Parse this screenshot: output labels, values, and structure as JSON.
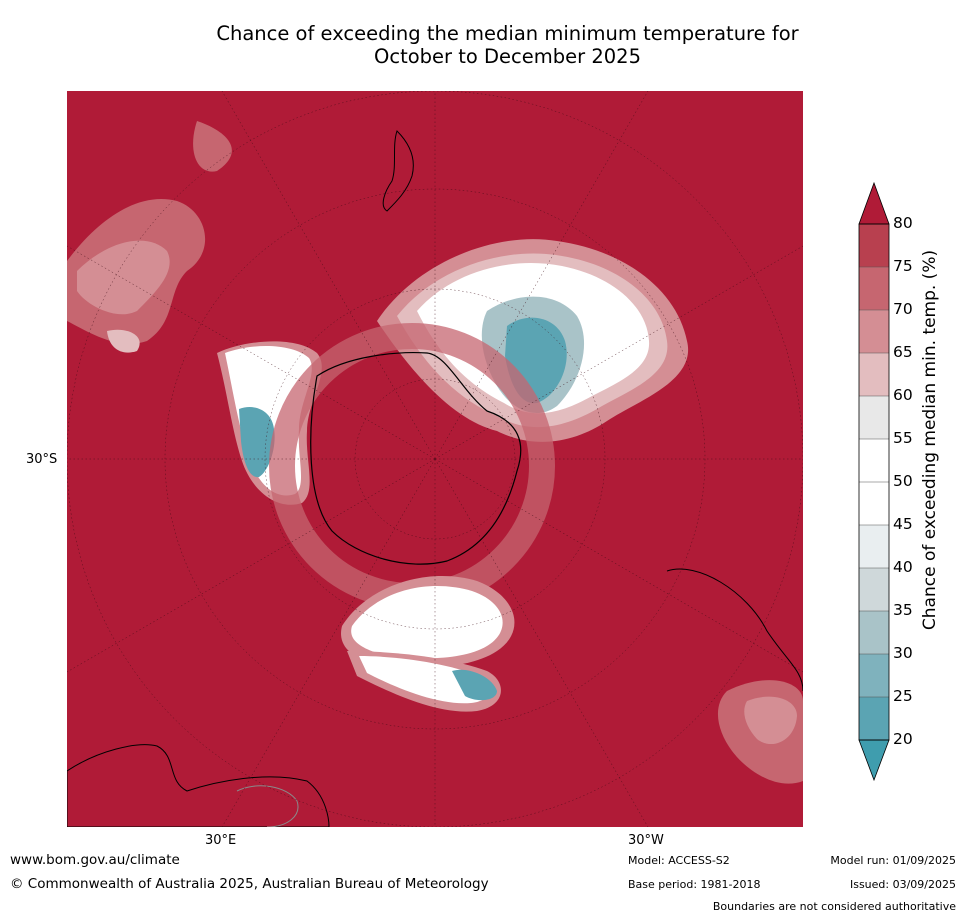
{
  "title": {
    "line1": "Chance of exceeding the median minimum temperature for",
    "line2": "October to December 2025"
  },
  "map": {
    "projection": "south polar stereographic",
    "labels": {
      "lat_30s": "30°S",
      "lon_30e": "30°E",
      "lon_30w": "30°W"
    }
  },
  "colorbar": {
    "label": "Chance of exceeding median min. temp. (%)",
    "ticks": [
      "80",
      "75",
      "70",
      "65",
      "60",
      "55",
      "50",
      "45",
      "40",
      "35",
      "30",
      "25",
      "20"
    ],
    "colors": [
      "#b01b37",
      "#b8404f",
      "#c66670",
      "#d48e94",
      "#e3bdbf",
      "#e8e8e8",
      "#ffffff",
      "#ffffff",
      "#e9eef0",
      "#cfd8da",
      "#a9c3c8",
      "#7fb2bd",
      "#5ba4b3",
      "#3f9dae"
    ]
  },
  "footer": {
    "url": "www.bom.gov.au/climate",
    "copyright": "© Commonwealth of Australia 2025, Australian Bureau of Meteorology",
    "model": "Model: ACCESS-S2",
    "base_period": "Base period: 1981-2018",
    "model_run": "Model run: 01/09/2025",
    "issued": "Issued: 03/09/2025",
    "disclaimer": "Boundaries are not considered authoritative"
  }
}
